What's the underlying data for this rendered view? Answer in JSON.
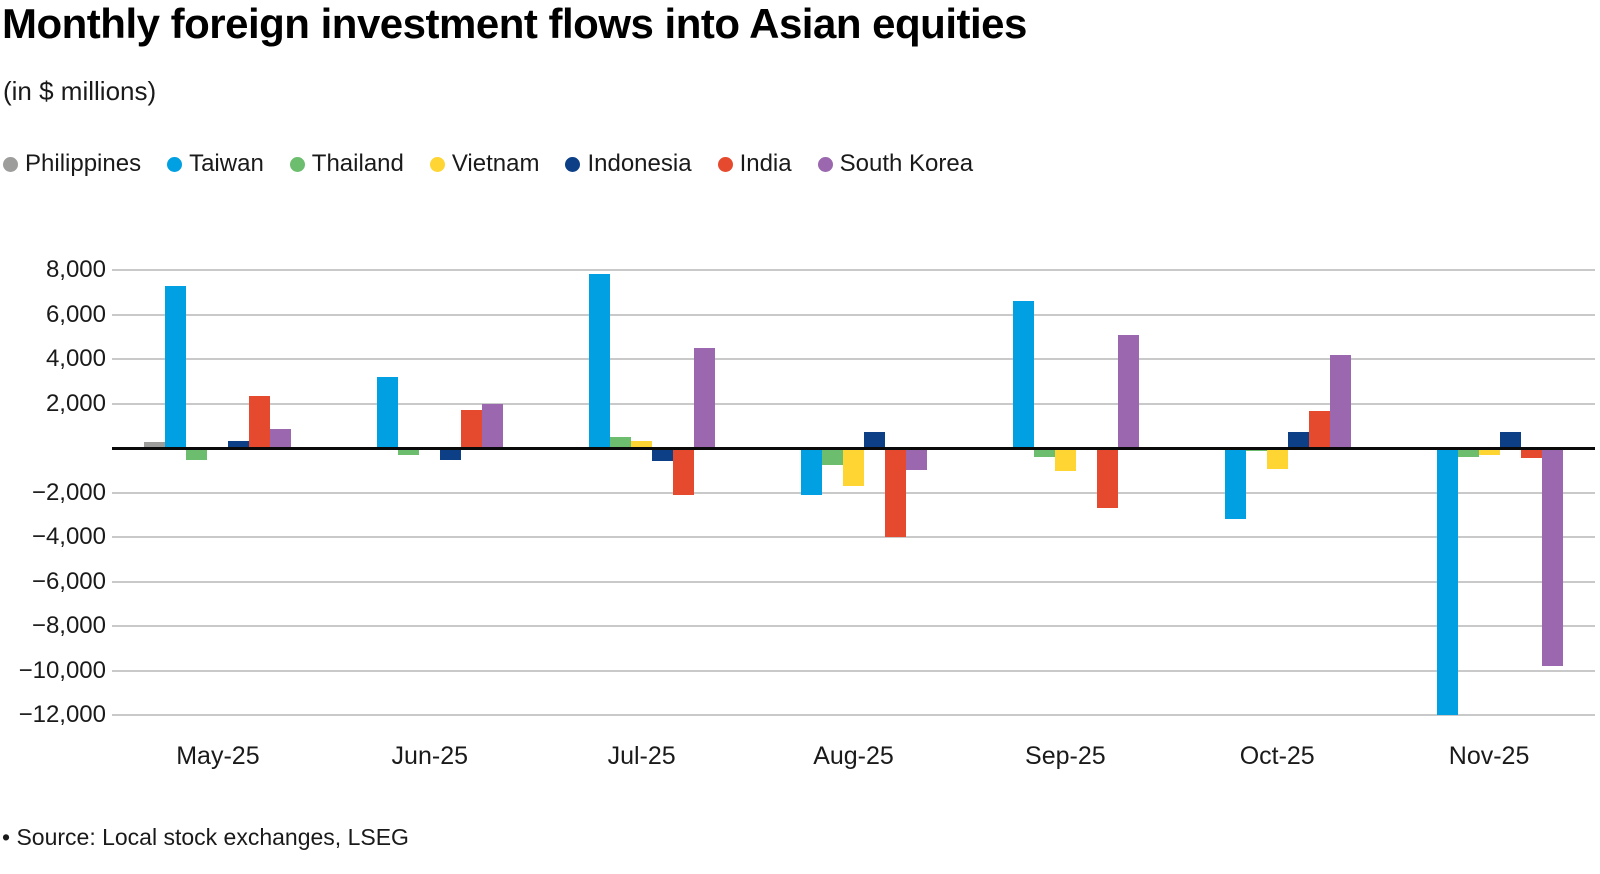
{
  "header": {
    "title": "Monthly foreign investment flows into Asian equities",
    "subtitle": "(in $ millions)"
  },
  "footer": {
    "source": "• Source: Local stock exchanges, LSEG"
  },
  "chart_data": {
    "type": "bar",
    "title": "Monthly foreign investment flows into Asian equities",
    "subtitle": "(in $ millions)",
    "categories": [
      "May-25",
      "Jun-25",
      "Jul-25",
      "Aug-25",
      "Sep-25",
      "Oct-25",
      "Nov-25"
    ],
    "series": [
      {
        "name": "Philippines",
        "color": "#9d9d9c",
        "values": [
          250,
          -75,
          0,
          -100,
          0,
          -100,
          0
        ]
      },
      {
        "name": "Taiwan",
        "color": "#00a0e2",
        "values": [
          7300,
          3200,
          7800,
          -2100,
          6600,
          -3200,
          -12000
        ]
      },
      {
        "name": "Thailand",
        "color": "#6cbe6e",
        "values": [
          -550,
          -300,
          500,
          -750,
          -400,
          -150,
          -400
        ]
      },
      {
        "name": "Vietnam",
        "color": "#fed533",
        "values": [
          0,
          -75,
          300,
          -1700,
          -1050,
          -950,
          -300
        ]
      },
      {
        "name": "Indonesia",
        "color": "#0d3f87",
        "values": [
          300,
          -550,
          -600,
          700,
          0,
          700,
          700
        ]
      },
      {
        "name": "India",
        "color": "#e64a2e",
        "values": [
          2350,
          1700,
          -2100,
          -4000,
          -2700,
          1650,
          -450
        ]
      },
      {
        "name": "South Korea",
        "color": "#9b67ae",
        "values": [
          850,
          2000,
          4500,
          -1000,
          5100,
          4200,
          -9800
        ]
      }
    ],
    "ylim": [
      -12000,
      8000
    ],
    "ytick_step": 2000,
    "yticks_labeled": [
      8000,
      6000,
      4000,
      2000,
      -2000,
      -4000,
      -6000,
      -8000,
      -10000,
      -12000
    ],
    "grid": true,
    "legend_position": "top-left",
    "gridline_color": "#c9c9c9",
    "zero_line_color": "#0a0a0a"
  }
}
